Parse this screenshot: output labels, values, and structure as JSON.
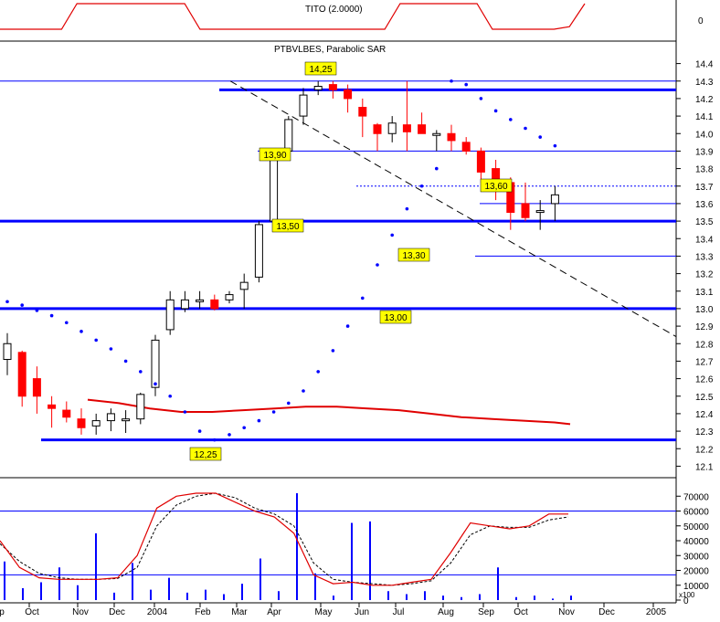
{
  "colors": {
    "candle_up": "#ffffff",
    "candle_down": "#ff0000",
    "candle_neutral": "#000000",
    "sar": "#0000ff",
    "level_line": "#0000ff",
    "trendline": "#000000",
    "moving_average": "#e00000",
    "tito_line": "#e00000",
    "stoch_k": "#e00000",
    "stoch_d": "#000000",
    "volume_bar": "#0000ff",
    "label_bg": "#ffff00",
    "grid": "#000000"
  },
  "chart_data": [
    {
      "type": "line",
      "panel": "indicator-top",
      "title": "TITO (2.0000)",
      "yticks": [
        "0"
      ],
      "series": [
        {
          "name": "TITO",
          "x": [
            0,
            4,
            5,
            12,
            13,
            25,
            26,
            31,
            32,
            36,
            37,
            38
          ],
          "values": [
            -1,
            -1,
            1,
            1,
            -1,
            -1,
            1,
            1,
            -1,
            -1,
            -0.8,
            1
          ]
        }
      ]
    },
    {
      "type": "candlestick",
      "panel": "price",
      "title": "PTBVLBES, Parabolic SAR",
      "ylim": [
        12.05,
        14.45
      ],
      "yticks": [
        "14.4",
        "14.3",
        "14.2",
        "14.1",
        "14.0",
        "13.9",
        "13.8",
        "13.7",
        "13.6",
        "13.5",
        "13.4",
        "13.3",
        "13.2",
        "13.1",
        "13.0",
        "12.9",
        "12.8",
        "12.7",
        "12.6",
        "12.5",
        "12.4",
        "12.3",
        "12.2",
        "12.1"
      ],
      "xticks": [
        "p",
        "Oct",
        "Nov",
        "Dec",
        "2004",
        "Feb",
        "Mar",
        "Apr",
        "May",
        "Jun",
        "Jul",
        "Aug",
        "Sep",
        "Oct",
        "Nov",
        "Dec",
        "2005"
      ],
      "weeks": 40,
      "candles": [
        {
          "w": 0,
          "o": 12.71,
          "h": 12.86,
          "l": 12.62,
          "c": 12.8
        },
        {
          "w": 1,
          "o": 12.75,
          "h": 12.76,
          "l": 12.44,
          "c": 12.5
        },
        {
          "w": 2,
          "o": 12.6,
          "h": 12.67,
          "l": 12.4,
          "c": 12.5
        },
        {
          "w": 3,
          "o": 12.45,
          "h": 12.5,
          "l": 12.32,
          "c": 12.43
        },
        {
          "w": 4,
          "o": 12.42,
          "h": 12.47,
          "l": 12.35,
          "c": 12.38
        },
        {
          "w": 5,
          "o": 12.37,
          "h": 12.43,
          "l": 12.28,
          "c": 12.32
        },
        {
          "w": 6,
          "o": 12.33,
          "h": 12.4,
          "l": 12.28,
          "c": 12.36
        },
        {
          "w": 7,
          "o": 12.36,
          "h": 12.43,
          "l": 12.3,
          "c": 12.4
        },
        {
          "w": 8,
          "o": 12.37,
          "h": 12.42,
          "l": 12.29,
          "c": 12.37
        },
        {
          "w": 9,
          "o": 12.37,
          "h": 12.52,
          "l": 12.34,
          "c": 12.51
        },
        {
          "w": 10,
          "o": 12.55,
          "h": 12.85,
          "l": 12.5,
          "c": 12.82
        },
        {
          "w": 11,
          "o": 12.88,
          "h": 13.1,
          "l": 12.85,
          "c": 13.05
        },
        {
          "w": 12,
          "o": 13.0,
          "h": 13.1,
          "l": 12.98,
          "c": 13.05
        },
        {
          "w": 13,
          "o": 13.05,
          "h": 13.1,
          "l": 13.0,
          "c": 13.05
        },
        {
          "w": 14,
          "o": 13.05,
          "h": 13.08,
          "l": 12.99,
          "c": 13.0
        },
        {
          "w": 15,
          "o": 13.05,
          "h": 13.1,
          "l": 13.03,
          "c": 13.08
        },
        {
          "w": 16,
          "o": 13.11,
          "h": 13.2,
          "l": 13.0,
          "c": 13.15
        },
        {
          "w": 17,
          "o": 13.18,
          "h": 13.5,
          "l": 13.15,
          "c": 13.48
        },
        {
          "w": 18,
          "o": 13.5,
          "h": 13.88,
          "l": 13.45,
          "c": 13.85
        },
        {
          "w": 19,
          "o": 13.9,
          "h": 14.1,
          "l": 13.85,
          "c": 14.08
        },
        {
          "w": 20,
          "o": 14.1,
          "h": 14.26,
          "l": 14.05,
          "c": 14.22
        },
        {
          "w": 21,
          "o": 14.25,
          "h": 14.3,
          "l": 14.22,
          "c": 14.27
        },
        {
          "w": 22,
          "o": 14.28,
          "h": 14.3,
          "l": 14.2,
          "c": 14.25
        },
        {
          "w": 23,
          "o": 14.25,
          "h": 14.28,
          "l": 14.12,
          "c": 14.2
        },
        {
          "w": 24,
          "o": 14.15,
          "h": 14.2,
          "l": 13.98,
          "c": 14.1
        },
        {
          "w": 25,
          "o": 14.05,
          "h": 14.06,
          "l": 13.9,
          "c": 14.0
        },
        {
          "w": 26,
          "o": 14.0,
          "h": 14.1,
          "l": 13.95,
          "c": 14.06
        },
        {
          "w": 27,
          "o": 14.05,
          "h": 14.3,
          "l": 13.9,
          "c": 14.01
        },
        {
          "w": 28,
          "o": 14.05,
          "h": 14.12,
          "l": 14.0,
          "c": 14.0
        },
        {
          "w": 29,
          "o": 14.0,
          "h": 14.02,
          "l": 13.9,
          "c": 14.0
        },
        {
          "w": 30,
          "o": 14.0,
          "h": 14.05,
          "l": 13.9,
          "c": 13.96
        },
        {
          "w": 31,
          "o": 13.95,
          "h": 13.98,
          "l": 13.88,
          "c": 13.9
        },
        {
          "w": 32,
          "o": 13.9,
          "h": 13.92,
          "l": 13.72,
          "c": 13.78
        },
        {
          "w": 33,
          "o": 13.8,
          "h": 13.85,
          "l": 13.62,
          "c": 13.7
        },
        {
          "w": 34,
          "o": 13.72,
          "h": 13.75,
          "l": 13.45,
          "c": 13.55
        },
        {
          "w": 35,
          "o": 13.6,
          "h": 13.72,
          "l": 13.5,
          "c": 13.52
        },
        {
          "w": 36,
          "o": 13.55,
          "h": 13.62,
          "l": 13.45,
          "c": 13.56
        },
        {
          "w": 37,
          "o": 13.6,
          "h": 13.7,
          "l": 13.5,
          "c": 13.65
        }
      ],
      "sar_points": [
        [
          0,
          13.04
        ],
        [
          1,
          13.02
        ],
        [
          2,
          12.99
        ],
        [
          3,
          12.96
        ],
        [
          4,
          12.92
        ],
        [
          5,
          12.87
        ],
        [
          6,
          12.82
        ],
        [
          7,
          12.77
        ],
        [
          8,
          12.7
        ],
        [
          9,
          12.64
        ],
        [
          10,
          12.57
        ],
        [
          11,
          12.5
        ],
        [
          12,
          12.41
        ],
        [
          13,
          12.3
        ],
        [
          14,
          12.25
        ],
        [
          15,
          12.28
        ],
        [
          16,
          12.32
        ],
        [
          17,
          12.36
        ],
        [
          18,
          12.41
        ],
        [
          19,
          12.46
        ],
        [
          20,
          12.53
        ],
        [
          21,
          12.64
        ],
        [
          22,
          12.76
        ],
        [
          23,
          12.9
        ],
        [
          24,
          13.06
        ],
        [
          25,
          13.25
        ],
        [
          26,
          13.42
        ],
        [
          27,
          13.57
        ],
        [
          28,
          13.7
        ],
        [
          29,
          13.8
        ],
        [
          30,
          14.3
        ],
        [
          31,
          14.28
        ],
        [
          32,
          14.2
        ],
        [
          33,
          14.13
        ],
        [
          34,
          14.08
        ],
        [
          35,
          14.03
        ],
        [
          36,
          13.98
        ],
        [
          37,
          13.93
        ]
      ],
      "levels": [
        {
          "value": 14.25,
          "label": "14,25"
        },
        {
          "value": 13.9,
          "label": "13,90"
        },
        {
          "value": 13.5,
          "label": "13,50"
        },
        {
          "value": 13.3,
          "label": "13,30"
        },
        {
          "value": 13.6,
          "label": "13,60"
        },
        {
          "value": 13.0,
          "label": "13,00"
        },
        {
          "value": 12.25,
          "label": "12,25"
        }
      ],
      "moving_average": {
        "name": "MA",
        "x": [
          6,
          8,
          10,
          12,
          14,
          16,
          18,
          20,
          22,
          24,
          26,
          28,
          30,
          32,
          34,
          36,
          37
        ],
        "values": [
          12.48,
          12.46,
          12.43,
          12.41,
          12.41,
          12.42,
          12.43,
          12.44,
          12.44,
          12.43,
          12.42,
          12.4,
          12.38,
          12.37,
          12.36,
          12.35,
          12.34
        ]
      },
      "trendline": {
        "from": [
          22,
          14.3
        ],
        "to": [
          40,
          12.84
        ]
      }
    },
    {
      "type": "bar+line",
      "panel": "volume",
      "ylim": [
        0,
        80000
      ],
      "yticks": [
        "70000",
        "60000",
        "50000",
        "40000",
        "30000",
        "20000",
        "10000",
        "0"
      ],
      "unit": "x100",
      "volume": [
        26000,
        8000,
        12000,
        22000,
        10000,
        45000,
        5000,
        25000,
        7000,
        15000,
        5000,
        7000,
        4000,
        11000,
        28000,
        6000,
        72000,
        18000,
        3000,
        52000,
        53000,
        6000,
        4000,
        6000,
        3000,
        2000,
        4000,
        22000,
        2000,
        3000,
        1000,
        3000
      ],
      "stoch_k": [
        40000,
        22000,
        15000,
        14000,
        14000,
        14000,
        15000,
        30000,
        62000,
        70000,
        72000,
        72000,
        66000,
        60000,
        56000,
        45000,
        17000,
        11000,
        12000,
        10000,
        10000,
        12000,
        14000,
        32000,
        52000,
        50000,
        48000,
        50000,
        58000,
        58000
      ],
      "stoch_d": [
        38000,
        26000,
        18000,
        15000,
        14000,
        14000,
        14500,
        22000,
        50000,
        64000,
        70000,
        72000,
        69000,
        62000,
        58000,
        50000,
        25000,
        14000,
        12000,
        11000,
        10000,
        11000,
        13000,
        25000,
        44000,
        50000,
        49000,
        49000,
        54000,
        56000
      ],
      "reference_lines": [
        60000,
        17000
      ]
    }
  ]
}
